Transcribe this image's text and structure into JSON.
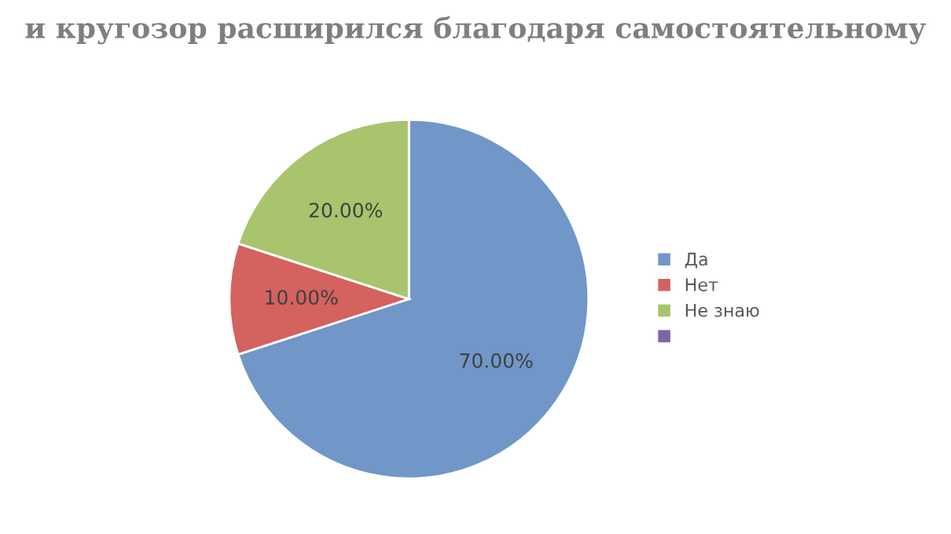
{
  "chart_data": {
    "type": "pie",
    "title": "и кругозор расширился благодаря самостоятельному",
    "categories": [
      "Да",
      "Нет",
      "Не знаю",
      null
    ],
    "values": [
      70,
      10,
      20,
      0
    ],
    "colors": [
      "#7097c8",
      "#d4625f",
      "#a8c46c",
      "#8064a2"
    ],
    "value_labels": [
      "70.00%",
      "10.00%",
      "20.00%",
      null
    ],
    "legend": "right"
  }
}
